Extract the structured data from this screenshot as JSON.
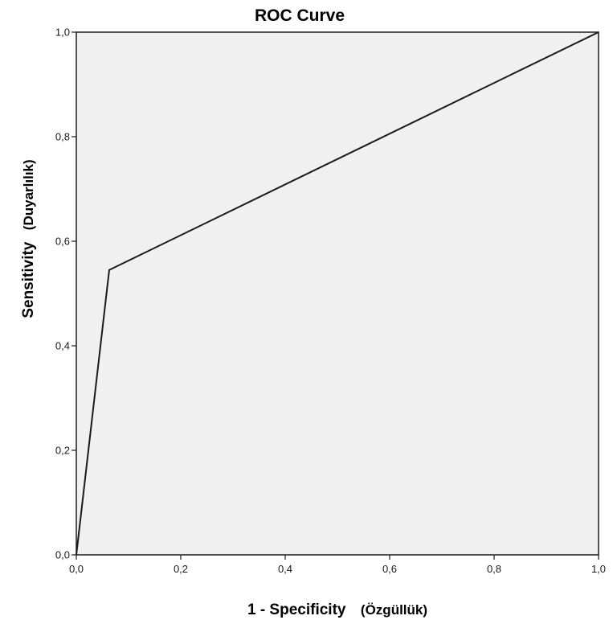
{
  "chart_data": {
    "type": "line",
    "title": "ROC Curve",
    "xlabel": "1 - Specificity",
    "xlabel_note": "(Özgüllük)",
    "ylabel": "Sensitivity",
    "ylabel_note": "(Duyarlılık)",
    "xlim": [
      0,
      1
    ],
    "ylim": [
      0,
      1
    ],
    "x_ticks": [
      {
        "value": 0.0,
        "label": "0,0"
      },
      {
        "value": 0.2,
        "label": "0,2"
      },
      {
        "value": 0.4,
        "label": "0,4"
      },
      {
        "value": 0.6,
        "label": "0,6"
      },
      {
        "value": 0.8,
        "label": "0,8"
      },
      {
        "value": 1.0,
        "label": "1,0"
      }
    ],
    "y_ticks": [
      {
        "value": 0.0,
        "label": "0,0"
      },
      {
        "value": 0.2,
        "label": "0,2"
      },
      {
        "value": 0.4,
        "label": "0,4"
      },
      {
        "value": 0.6,
        "label": "0,6"
      },
      {
        "value": 0.8,
        "label": "0,8"
      },
      {
        "value": 1.0,
        "label": "1,0"
      }
    ],
    "grid": false,
    "legend": "none",
    "series": [
      {
        "x": [
          0.0,
          0.063,
          1.0
        ],
        "y": [
          0.0,
          0.545,
          1.0
        ]
      }
    ],
    "colors": {
      "plot_background": "#f0f0f0",
      "line": "#1a1a1a",
      "frame": "#1a1a1a"
    }
  }
}
